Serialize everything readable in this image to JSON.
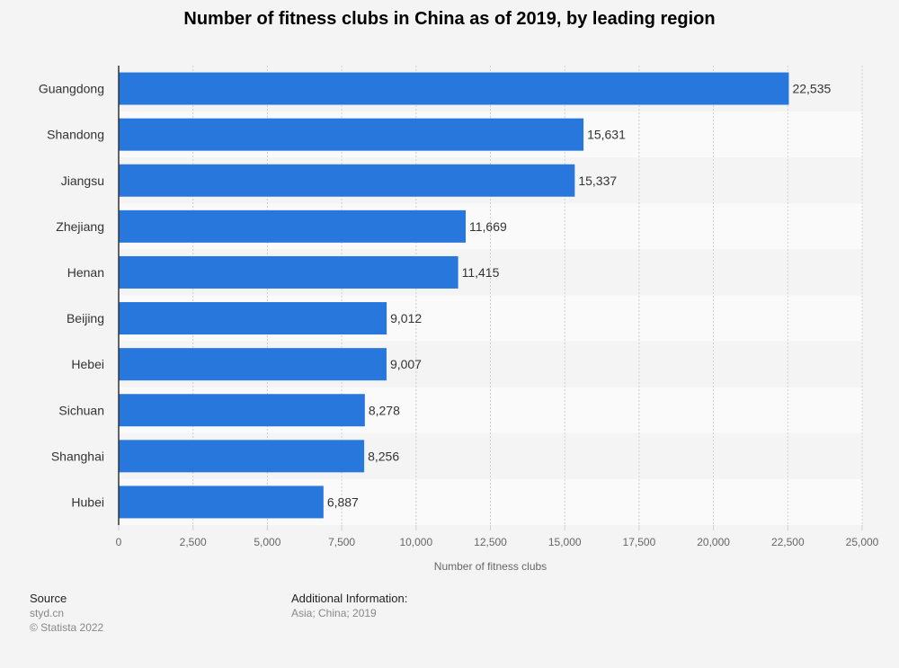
{
  "page": {
    "source_heading": "Source",
    "source_name": "styd.cn",
    "copyright": "© Statista 2022",
    "additional_heading": "Additional Information:",
    "additional_text": "Asia; China; 2019"
  },
  "colors": {
    "bar": "#2877dd",
    "band": "#f4f4f4",
    "band_alt": "#fafafa",
    "grid": "#cfcfcf",
    "axis": "#333333",
    "label": "#333333",
    "tick": "#666666"
  },
  "chart_data": {
    "type": "bar",
    "orientation": "horizontal",
    "title": "Number of fitness clubs in China as of 2019, by leading region",
    "xlabel": "Number of fitness clubs",
    "ylabel": "",
    "categories": [
      "Guangdong",
      "Shandong",
      "Jiangsu",
      "Zhejiang",
      "Henan",
      "Beijing",
      "Hebei",
      "Sichuan",
      "Shanghai",
      "Hubei"
    ],
    "values": [
      22535,
      15631,
      15337,
      11669,
      11415,
      9012,
      9007,
      8278,
      8256,
      6887
    ],
    "value_labels": [
      "22,535",
      "15,631",
      "15,337",
      "11,669",
      "11,415",
      "9,012",
      "9,007",
      "8,278",
      "8,256",
      "6,887"
    ],
    "xlim": [
      0,
      25000
    ],
    "ticks": [
      0,
      2500,
      5000,
      7500,
      10000,
      12500,
      15000,
      17500,
      20000,
      22500,
      25000
    ],
    "tick_labels": [
      "0",
      "2,500",
      "5,000",
      "7,500",
      "10,000",
      "12,500",
      "15,000",
      "17,500",
      "20,000",
      "22,500",
      "25,000"
    ],
    "grid": true
  }
}
